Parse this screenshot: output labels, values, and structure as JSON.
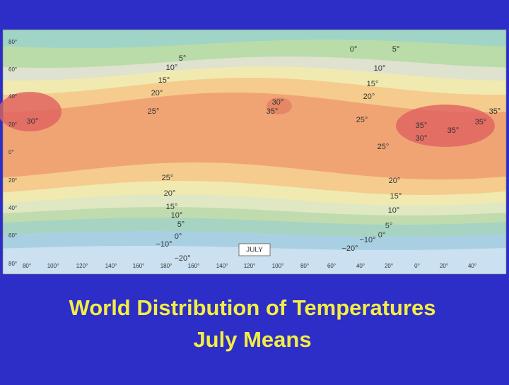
{
  "map": {
    "legend": "JULY",
    "latitude_labels": [
      "80°",
      "60°",
      "40°",
      "20°",
      "0°",
      "20°",
      "40°",
      "60°",
      "80°"
    ],
    "longitude_labels": [
      "80°",
      "100°",
      "120°",
      "140°",
      "160°",
      "180°",
      "160°",
      "140°",
      "120°",
      "100°",
      "80°",
      "60°",
      "40°",
      "20°",
      "0°",
      "20°",
      "40°"
    ],
    "isotherm_labels": [
      "5°",
      "0°",
      "5°",
      "10°",
      "10°",
      "15°",
      "15°",
      "20°",
      "20°",
      "25°",
      "30°",
      "35°",
      "25°",
      "35°",
      "35°",
      "35°",
      "35°",
      "30°",
      "30°",
      "25°",
      "25°",
      "20°",
      "20°",
      "15°",
      "15°",
      "10°",
      "10°",
      "5°",
      "5°",
      "0°",
      "0°",
      "−10°",
      "−10°",
      "−20°",
      "−20°"
    ]
  },
  "title": {
    "line1": "World Distribution of Temperatures",
    "line2": "July Means"
  }
}
